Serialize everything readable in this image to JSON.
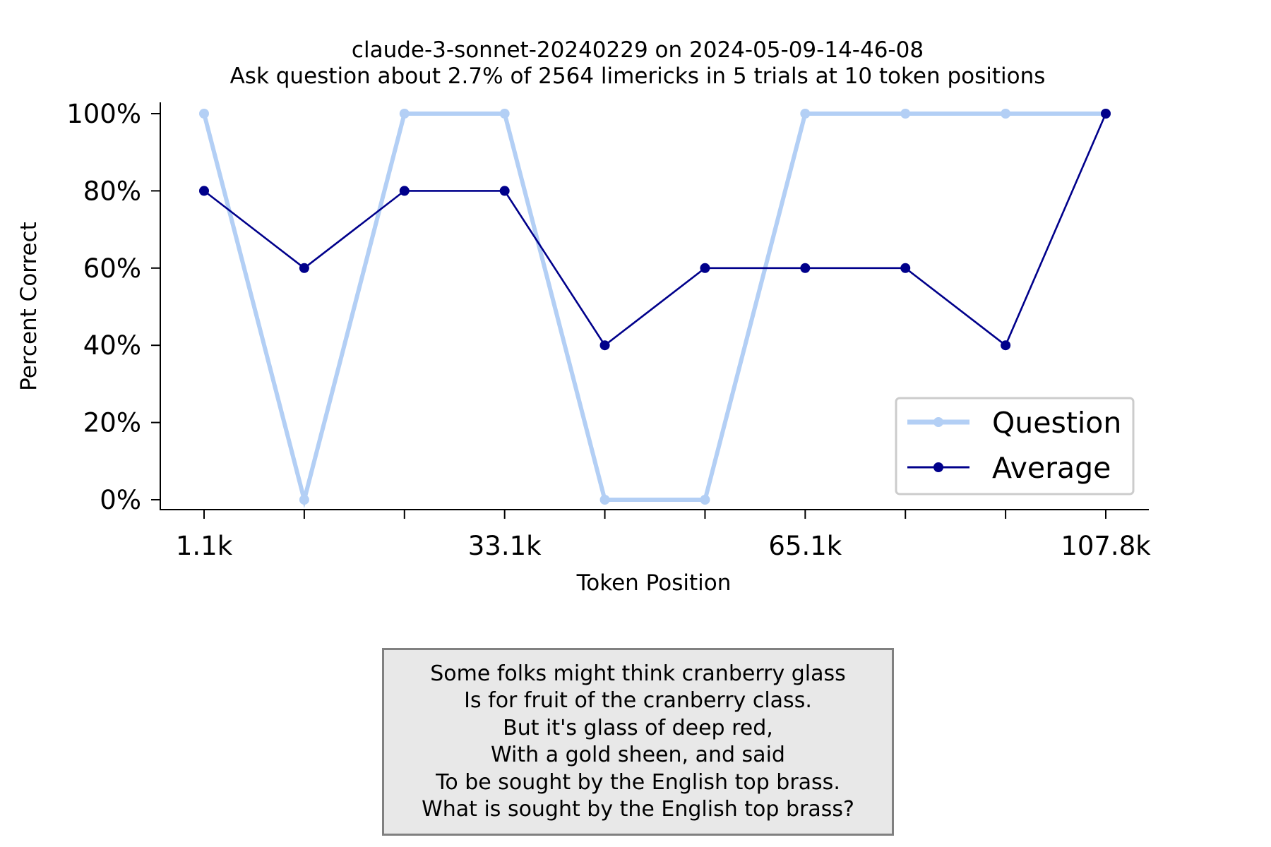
{
  "chart_data": {
    "type": "line",
    "title": "claude-3-sonnet-20240229 on 2024-05-09-14-46-08",
    "subtitle": "Ask question about 2.7% of 2564 limericks in 5 trials at 10 token positions",
    "xlabel": "Token Position",
    "ylabel": "Percent Correct",
    "x_tick_labels": [
      "1.1k",
      "",
      "",
      "33.1k",
      "",
      "",
      "65.1k",
      "",
      "",
      "107.8k"
    ],
    "y_tick_labels": [
      "0%",
      "20%",
      "40%",
      "60%",
      "80%",
      "100%"
    ],
    "y_ticks": [
      0,
      20,
      40,
      60,
      80,
      100
    ],
    "ylim": [
      0,
      100
    ],
    "grid": false,
    "legend_position": "lower-right",
    "series": [
      {
        "name": "Question",
        "color": "#b3cff5",
        "values": [
          100,
          0,
          100,
          100,
          0,
          0,
          100,
          100,
          100,
          100
        ]
      },
      {
        "name": "Average",
        "color": "#00008b",
        "values": [
          80,
          60,
          80,
          80,
          40,
          60,
          60,
          60,
          40,
          100
        ]
      }
    ]
  },
  "limerick": {
    "lines": [
      "Some folks might think cranberry glass",
      "Is for fruit of the cranberry class.",
      "But it's glass of deep red,",
      "With a gold sheen, and said",
      "To be sought by the English top brass.",
      "What is sought by the English top brass?"
    ]
  }
}
